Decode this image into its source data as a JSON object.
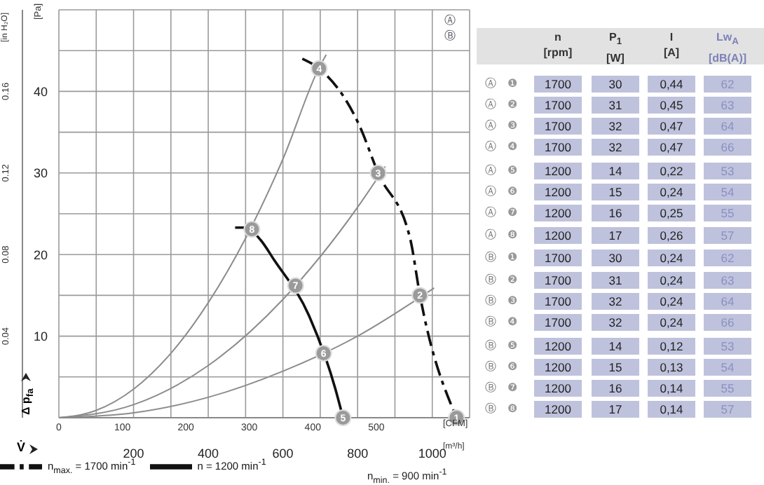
{
  "chart_data": [
    {
      "type": "line",
      "xlabel": "[m³/h]",
      "x2label": "[CFM]",
      "ylabel": "[Pa]",
      "y2label": "[in H₂O]",
      "xlim": [
        0,
        1100
      ],
      "xticks": [
        {
          "value": 0,
          "label": null
        },
        {
          "value": 100,
          "label": null
        },
        200,
        {
          "value": 300,
          "label": null
        },
        400,
        {
          "value": 500,
          "label": null
        },
        600,
        {
          "value": 700,
          "label": null
        },
        800,
        {
          "value": 900,
          "label": null
        },
        1000,
        {
          "value": 1100,
          "label": null
        }
      ],
      "x2lim": [
        0,
        647
      ],
      "x2ticks": [
        0,
        100,
        200,
        300,
        400,
        500
      ],
      "ylim": [
        0,
        50
      ],
      "yticks": [
        {
          "value": 0,
          "label": null
        },
        {
          "value": 5,
          "label": null
        },
        10,
        {
          "value": 15,
          "label": null
        },
        20,
        {
          "value": 25,
          "label": null
        },
        30,
        {
          "value": 35,
          "label": null
        },
        40,
        {
          "value": 45,
          "label": null
        },
        {
          "value": 50,
          "label": null
        }
      ],
      "y2lim": [
        0,
        0.2
      ],
      "y2ticks": [
        0.04,
        0.08,
        0.12,
        0.16
      ],
      "grid": true,
      "legend": "bottom",
      "marker": "none",
      "annotations": [
        "Ⓐ",
        "Ⓑ",
        "V̇",
        "Δ p$_{fa}$",
        "n$_{min.}$ = 900 min$^{-1}$",
        {
          "text": "1",
          "x": 1065,
          "y": 0
        },
        {
          "text": "2",
          "x": 967,
          "y": 15
        },
        {
          "text": "3",
          "x": 855,
          "y": 30
        },
        {
          "text": "4",
          "x": 697,
          "y": 42.8
        },
        {
          "text": "5",
          "x": 761,
          "y": 0
        },
        {
          "text": "6",
          "x": 709,
          "y": 7.9
        },
        {
          "text": "7",
          "x": 634,
          "y": 16.2
        },
        {
          "text": "8",
          "x": 517,
          "y": 23.1
        }
      ],
      "series": [
        {
          "name": "n$_{max.}$ = 1700 min$^{-1}$",
          "color": "#111111",
          "line_style": "dashed",
          "x": [
            652,
            697,
            806,
            855,
            941,
            967,
            1065
          ],
          "values": [
            44,
            42.8,
            35.7,
            30,
            21.9,
            15,
            0
          ]
        },
        {
          "name": "n = 1200 min$^{-1}$",
          "color": "#111111",
          "line_style": "solid",
          "x": [
            472,
            500,
            540,
            577,
            670,
            740,
            761
          ],
          "values": [
            23.3,
            23.3,
            21.8,
            19.3,
            12.5,
            3.6,
            0
          ]
        },
        {
          "color": "#8c8c8c",
          "line_style": "solid",
          "x": [
            0,
            100,
            200,
            300,
            400,
            500,
            600,
            700,
            716
          ],
          "values": [
            0,
            0.9,
            3.5,
            7.9,
            14.1,
            22,
            31.7,
            43.2,
            44.5
          ]
        },
        {
          "color": "#8c8c8c",
          "line_style": "solid",
          "x": [
            0,
            200,
            400,
            600,
            800,
            874
          ],
          "values": [
            0,
            1.6,
            6.4,
            14.5,
            25.8,
            30.8
          ]
        },
        {
          "color": "#8c8c8c",
          "line_style": "solid",
          "x": [
            0,
            200,
            400,
            600,
            800,
            1005
          ],
          "values": [
            0,
            0.6,
            2.5,
            5.7,
            10,
            15.9
          ]
        },
        {
          "type": "scatter",
          "color": "#9a9a9a",
          "marker": "circle",
          "x": [
            1065,
            967,
            855,
            697,
            761,
            709,
            634,
            517
          ],
          "values": [
            0,
            15,
            30,
            42.8,
            0,
            7.9,
            16.2,
            23.1
          ]
        }
      ]
    },
    {
      "type": "other",
      "categories": [
        "n [rpm]",
        "P$_{1}$ [W]",
        "I [A]",
        "Lw$_{A}$ [dB(A)]"
      ],
      "y_categories": [
        "Ⓐ ❶",
        "Ⓐ ❷",
        "Ⓐ ❸",
        "Ⓐ ❹",
        "Ⓐ ❺",
        "Ⓐ ❻",
        "Ⓐ ❼",
        "Ⓐ ❽",
        "Ⓑ ❶",
        "Ⓑ ❷",
        "Ⓑ ❸",
        "Ⓑ ❹",
        "Ⓑ ❺",
        "Ⓑ ❻",
        "Ⓑ ❼",
        "Ⓑ ❽"
      ],
      "cell_labels": [
        [
          "1700",
          "30",
          "0,44",
          "62"
        ],
        [
          "1700",
          "31",
          "0,45",
          "63"
        ],
        [
          "1700",
          "32",
          "0,47",
          "64"
        ],
        [
          "1700",
          "32",
          "0,47",
          "66"
        ],
        [
          "1200",
          "14",
          "0,22",
          "53"
        ],
        [
          "1200",
          "15",
          "0,24",
          "54"
        ],
        [
          "1200",
          "16",
          "0,25",
          "55"
        ],
        [
          "1200",
          "17",
          "0,26",
          "57"
        ],
        [
          "1700",
          "30",
          "0,24",
          "62"
        ],
        [
          "1700",
          "31",
          "0,24",
          "63"
        ],
        [
          "1700",
          "32",
          "0,24",
          "64"
        ],
        [
          "1700",
          "32",
          "0,24",
          "66"
        ],
        [
          "1200",
          "14",
          "0,12",
          "53"
        ],
        [
          "1200",
          "15",
          "0,13",
          "54"
        ],
        [
          "1200",
          "16",
          "0,14",
          "55"
        ],
        [
          "1200",
          "17",
          "0,14",
          "57"
        ]
      ]
    }
  ]
}
